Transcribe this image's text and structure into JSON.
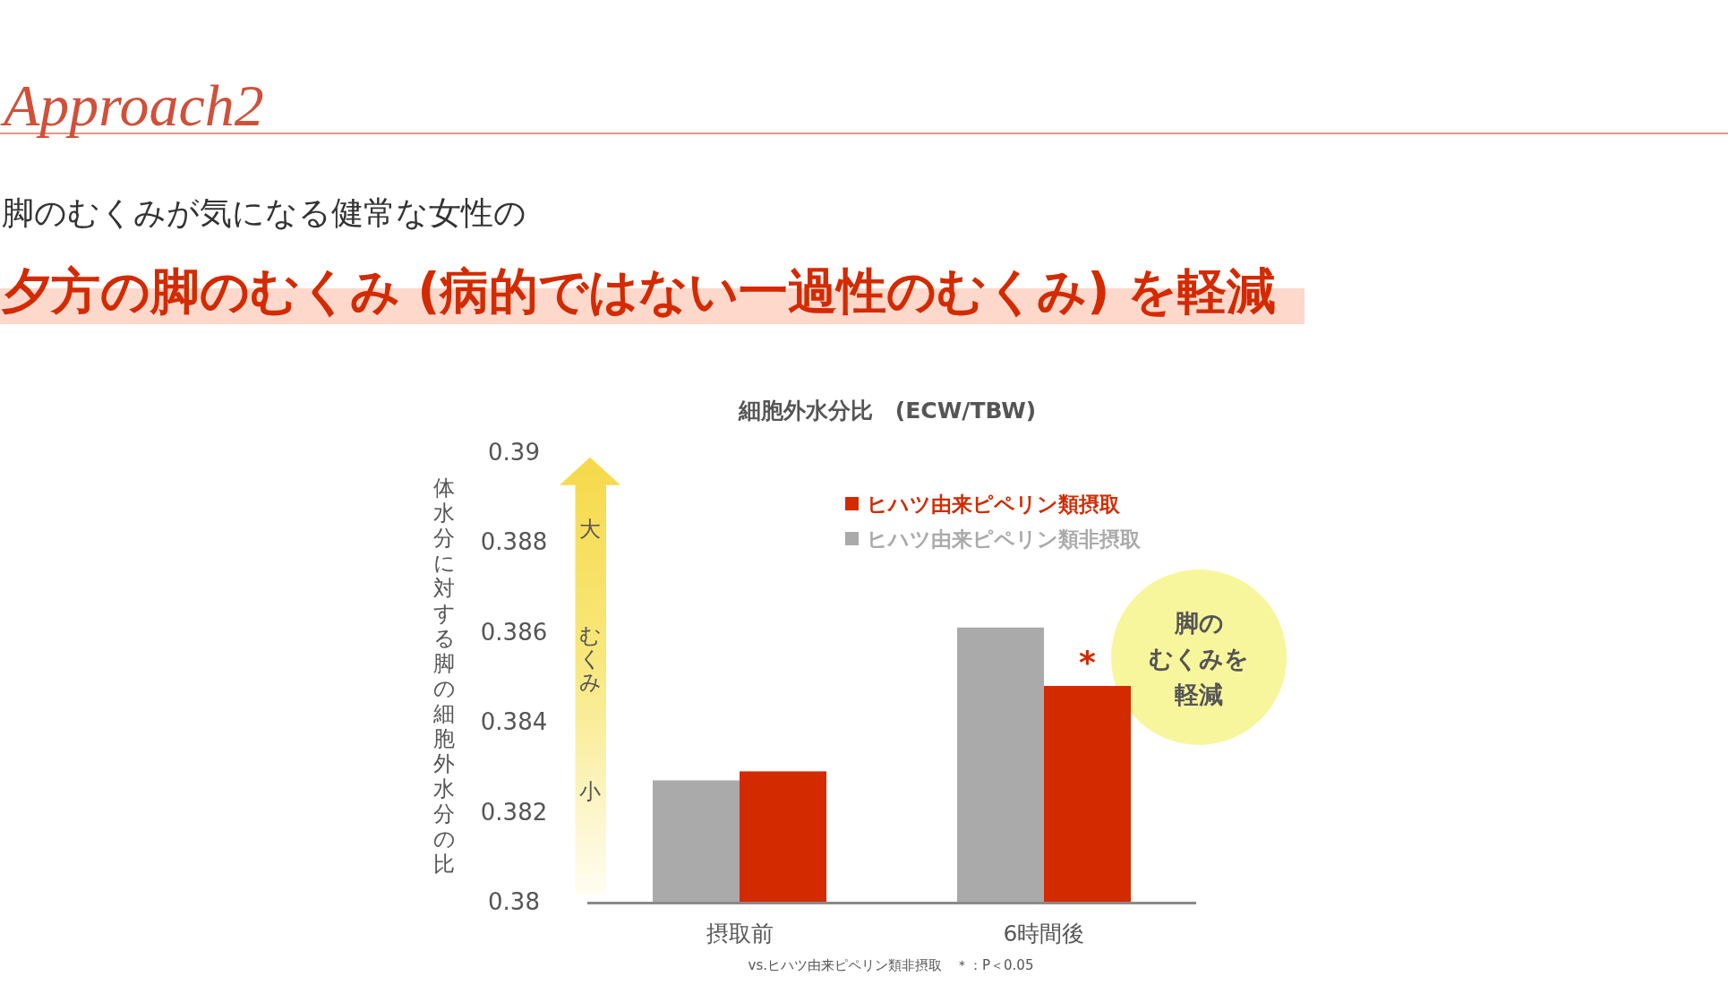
{
  "chart_data": {
    "type": "bar",
    "title": "夕方の脚のむくみ (病的ではない一過性のむくみ) を軽減",
    "subtitle": "脚のむくみが気になる健常な女性の",
    "ylabel": "体水分に対する脚の細胞外水分の比",
    "categories": [
      "摂取前",
      "6時間後"
    ],
    "series": [
      {
        "name": "ヒハツ由来ピペリン類非摂取",
        "color": "#aaaaaa",
        "values": [
          0.3827,
          0.3861
        ]
      },
      {
        "name": "ヒハツ由来ピペリン類摂取",
        "color": "#d42a00",
        "values": [
          0.3829,
          0.3848
        ]
      }
    ],
    "ylim": [
      0.38,
      0.39
    ],
    "yticks": [
      0.38,
      0.382,
      0.384,
      0.386,
      0.388,
      0.39
    ],
    "legend": "top right",
    "annotations": [
      "Approach2",
      "細胞外水分比　(ECW/TBW)",
      "大",
      "むくみ",
      "小",
      {
        "text": "*",
        "x": "6時間後",
        "y": 0.3848
      },
      "脚の",
      "むくみを",
      "軽減",
      "vs.ヒハツ由来ピペリン類非摂取　＊：P＜0.05"
    ]
  }
}
